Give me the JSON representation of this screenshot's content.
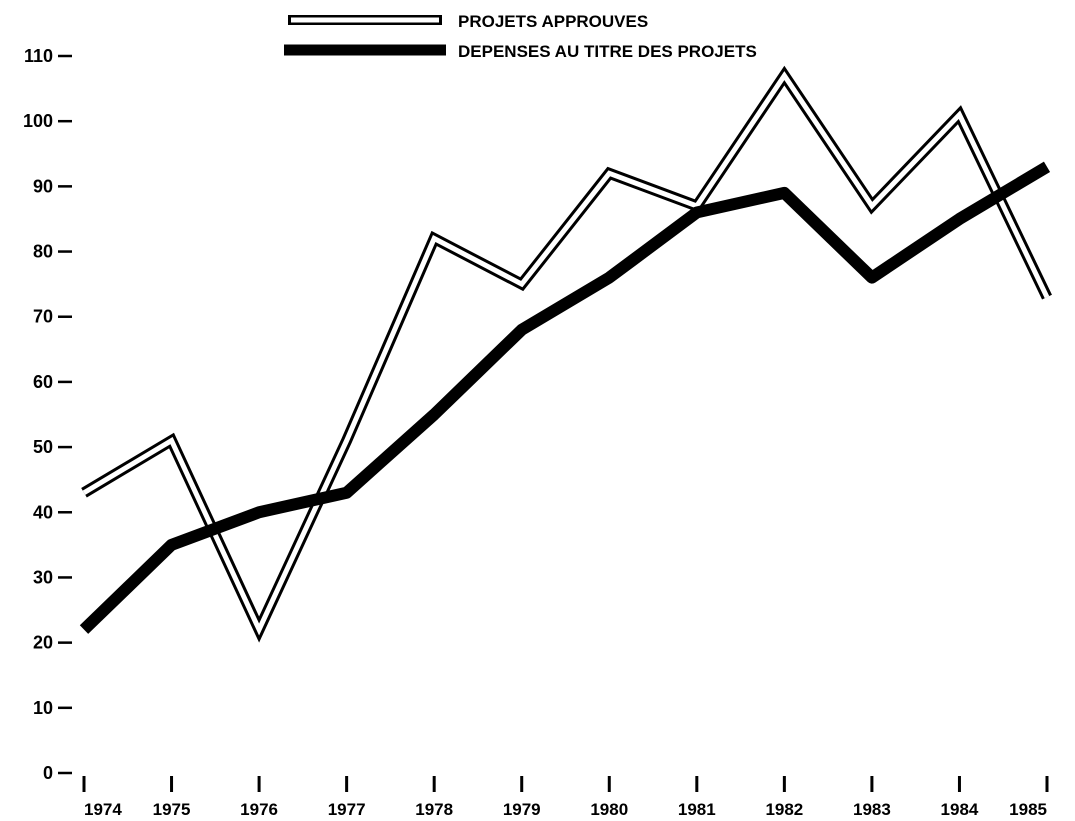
{
  "chart_data": {
    "type": "line",
    "title": "",
    "xlabel": "",
    "ylabel": "",
    "categories": [
      "1974",
      "1975",
      "1976",
      "1977",
      "1978",
      "1979",
      "1980",
      "1981",
      "1982",
      "1983",
      "1984",
      "1985"
    ],
    "x_tick_labels": [
      "1974",
      "1975",
      "1976",
      "1977",
      "1978",
      "1979",
      "1980",
      "1981",
      "1982",
      "1983",
      "1984",
      "1985"
    ],
    "y_ticks": [
      0,
      10,
      20,
      30,
      40,
      50,
      60,
      70,
      80,
      90,
      100,
      110
    ],
    "y_tick_labels": [
      "0",
      "10",
      "20",
      "30",
      "40",
      "50",
      "60",
      "70",
      "80",
      "90",
      "100",
      "110"
    ],
    "ylim": [
      0,
      110
    ],
    "grid": false,
    "legend_position": "top-center",
    "series": [
      {
        "name": "PROJETS APPROUVES",
        "style": "outline",
        "color": "#000000",
        "values": [
          43,
          51,
          22,
          51,
          82,
          75,
          92,
          87,
          107,
          87,
          101,
          73
        ]
      },
      {
        "name": "DEPENSES AU TITRE DES PROJETS",
        "style": "solid-thick",
        "color": "#000000",
        "values": [
          22,
          35,
          40,
          43,
          55,
          68,
          76,
          86,
          89,
          76,
          85,
          93
        ]
      }
    ]
  }
}
